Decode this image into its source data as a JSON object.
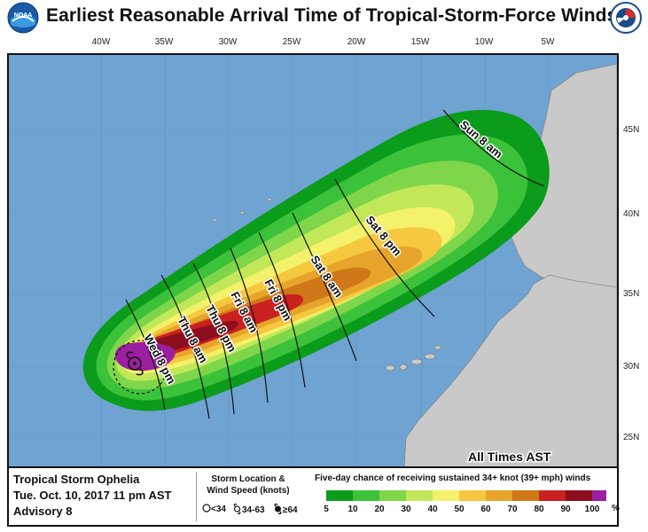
{
  "header": {
    "title": "Earliest Reasonable Arrival Time of Tropical-Storm-Force Winds",
    "left_logo": "noaa-logo",
    "right_logo": "national-weather-service-logo"
  },
  "map": {
    "longitude_labels": [
      "40W",
      "35W",
      "30W",
      "25W",
      "20W",
      "15W",
      "10W",
      "5W"
    ],
    "latitude_labels": [
      "45N",
      "40N",
      "35N",
      "30N",
      "25N"
    ],
    "time_labels": [
      "Wed 8 pm",
      "Thu 8 am",
      "Thu 8 pm",
      "Fri 8 am",
      "Fri 8 pm",
      "Sat 8 am",
      "Sat 8 pm",
      "Sun 8 am"
    ],
    "timezone_note": "All Times AST",
    "ocean_color": "#6fa3d1",
    "land_color": "#c9c9c9"
  },
  "legend": {
    "storm_name": "Tropical Storm Ophelia",
    "issued": "Tue. Oct. 10, 2017  11 pm AST",
    "advisory": "Advisory 8",
    "location_title": "Storm Location & Wind Speed (knots)",
    "location_symbols": [
      "<34",
      "34-63",
      "≥64"
    ],
    "probability_title": "Five-day chance of receiving sustained 34+ knot (39+ mph) winds",
    "probability_ticks": [
      "5",
      "10",
      "20",
      "30",
      "40",
      "50",
      "60",
      "70",
      "80",
      "90",
      "100"
    ],
    "probability_unit": "%",
    "probability_colors": [
      "#0c9c1b",
      "#3cc23a",
      "#7fd64a",
      "#c2e85a",
      "#f4f26a",
      "#f5c840",
      "#e6a52a",
      "#d07719",
      "#c92020",
      "#8c0e1e",
      "#9b1fa0"
    ]
  }
}
